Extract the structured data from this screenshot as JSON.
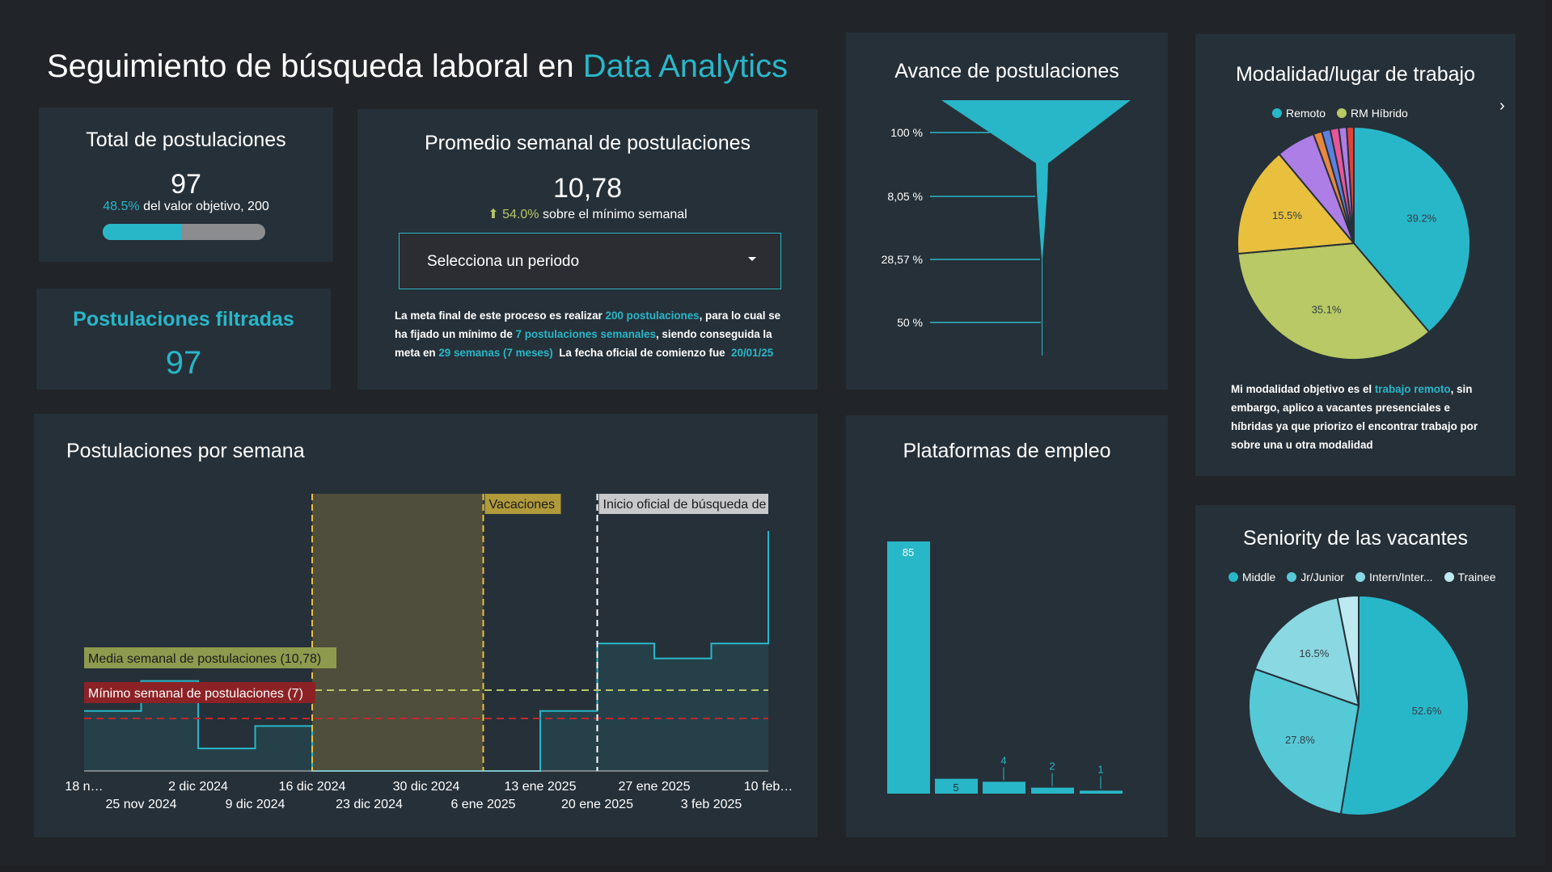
{
  "header": {
    "title_prefix": "Seguimiento de búsqueda laboral en ",
    "title_accent": "Data Analytics"
  },
  "total_card": {
    "title": "Total de postulaciones",
    "value": "97",
    "pct": "48.5%",
    "target_text": "del valor objetivo, 200",
    "progress": 0.485
  },
  "filtered_card": {
    "title": "Postulaciones filtradas",
    "value": "97"
  },
  "weekly_avg_card": {
    "title": "Promedio semanal de postulaciones",
    "value": "10,78",
    "arrow": "⬆",
    "delta": "54.0%",
    "delta_text": "sobre el mínimo semanal",
    "select_placeholder": "Selecciona un periodo",
    "description": {
      "p1": "La meta final de este proceso es realizar ",
      "h1": "200 postulaciones",
      "p2": ", para lo cual se ha fijado un mínimo de ",
      "h2": "7 postulaciones semanales",
      "p3": ", siendo conseguida la meta en ",
      "h3": "29 semanas (7 meses)",
      "p4": "  La fecha oficial de comienzo fue  ",
      "h4": "20/01/25"
    }
  },
  "funnel_card": {
    "title": "Avance de postulaciones",
    "labels": [
      "100 %",
      "8,05 %",
      "28,57 %",
      "50 %"
    ]
  },
  "modalidad_card": {
    "title": "Modalidad/lugar de trabajo",
    "legend": [
      {
        "label": "Remoto",
        "color": "#28b7c9"
      },
      {
        "label": "RM Híbrido",
        "color": "#b8c965"
      }
    ],
    "description": {
      "p1": "Mi modalidad objetivo es el ",
      "h1": "trabajo remoto",
      "p2": ", sin embargo, aplico a vacantes presenciales e híbridas ya que priorizo el encontrar trabajo por sobre una u otra modalidad"
    }
  },
  "weekly_card": {
    "title": "Postulaciones por semana",
    "vacaciones_label": "Vacaciones",
    "inicio_label": "Inicio oficial de búsqueda de",
    "media_label": "Media semanal de postulaciones (10,78)",
    "minimo_label": "Mínimo semanal de postulaciones (7)"
  },
  "platforms_card": {
    "title": "Plataformas de empleo"
  },
  "seniority_card": {
    "title": "Seniority de las vacantes",
    "legend": [
      {
        "label": "Middle",
        "color": "#28b7c9"
      },
      {
        "label": "Jr/Junior",
        "color": "#56c9d6"
      },
      {
        "label": "Intern/Inter...",
        "color": "#8ad8e2"
      },
      {
        "label": "Trainee",
        "color": "#bdeaf0"
      }
    ]
  },
  "chart_data": [
    {
      "type": "line",
      "title": "Postulaciones por semana",
      "x_tick_labels_top": [
        "18 n…",
        "2 dic 2024",
        "16 dic 2024",
        "30 dic 2024",
        "13 ene 2025",
        "27 ene 2025",
        "10 feb…"
      ],
      "x_tick_labels_bottom": [
        "25 nov 2024",
        "9 dic 2024",
        "23 dic 2024",
        "6 ene 2025",
        "20 ene 2025",
        "3 feb 2025"
      ],
      "x": [
        "2024-11-18",
        "2024-11-25",
        "2024-12-02",
        "2024-12-09",
        "2024-12-16",
        "2024-12-23",
        "2024-12-30",
        "2025-01-06",
        "2025-01-13",
        "2025-01-20",
        "2025-01-27",
        "2025-02-03",
        "2025-02-10"
      ],
      "series": [
        {
          "values": [
            8,
            12,
            3,
            6,
            0,
            0,
            0,
            0,
            8,
            17,
            15,
            17,
            32
          ]
        }
      ],
      "reference_lines": [
        {
          "label": "Media semanal de postulaciones (10,78)",
          "value": 10.78,
          "color": "#b8c965"
        },
        {
          "label": "Mínimo semanal de postulaciones (7)",
          "value": 7,
          "color": "#c0272d"
        }
      ],
      "annotations": [
        {
          "label": "Vacaciones",
          "x_start": "2024-12-16",
          "x_end": "2025-01-06"
        },
        {
          "label": "Inicio oficial de búsqueda de",
          "x": "2025-01-20"
        }
      ],
      "ylim": [
        0,
        32
      ]
    },
    {
      "type": "bar",
      "title": "Plataformas de empleo",
      "values": [
        85,
        5,
        4,
        2,
        1
      ]
    },
    {
      "type": "pie",
      "title": "Modalidad/lugar de trabajo",
      "legend": [
        "Remoto",
        "RM Híbrido"
      ],
      "slices": [
        {
          "label": "Remoto",
          "value": 39.2,
          "text": "39.2%",
          "color": "#28b7c9"
        },
        {
          "label": "RM Híbrido",
          "value": 35.1,
          "text": "35.1%",
          "color": "#b8c965"
        },
        {
          "value": 15.5,
          "text": "15.5%",
          "color": "#e8c03e"
        },
        {
          "value": 5.5,
          "text": "",
          "color": "#ad7ee6"
        },
        {
          "value": 1.2,
          "text": "",
          "color": "#e8883e"
        },
        {
          "value": 1.2,
          "text": "",
          "color": "#5e7fe0"
        },
        {
          "value": 1.2,
          "text": "",
          "color": "#e8569a"
        },
        {
          "value": 1.1,
          "text": "",
          "color": "#ad7ee6"
        },
        {
          "value": 1.0,
          "text": "",
          "color": "#e0433a"
        }
      ]
    },
    {
      "type": "pie",
      "title": "Seniority de las vacantes",
      "legend": [
        "Middle",
        "Jr/Junior",
        "Intern/Inter...",
        "Trainee"
      ],
      "slices": [
        {
          "label": "Middle",
          "value": 52.6,
          "text": "52.6%",
          "color": "#28b7c9"
        },
        {
          "label": "Jr/Junior",
          "value": 27.8,
          "text": "27.8%",
          "color": "#56c9d6"
        },
        {
          "label": "Intern/Inter...",
          "value": 16.5,
          "text": "16.5%",
          "color": "#8ad8e2"
        },
        {
          "label": "Trainee",
          "value": 3.1,
          "text": "",
          "color": "#bdeaf0"
        }
      ]
    }
  ]
}
